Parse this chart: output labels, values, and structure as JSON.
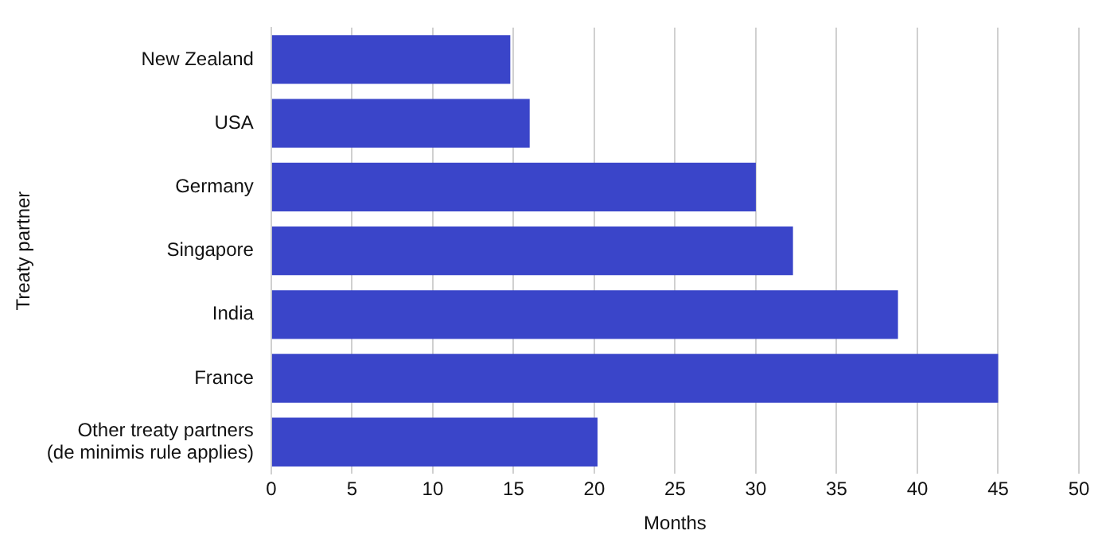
{
  "chart_data": {
    "type": "bar",
    "orientation": "horizontal",
    "xlabel": "Months",
    "ylabel": "Treaty partner",
    "categories": [
      "New Zealand",
      "USA",
      "Germany",
      "Singapore",
      "India",
      "France",
      "Other treaty partners\n(de minimis rule applies)"
    ],
    "values": [
      14.8,
      16,
      30,
      32.3,
      38.8,
      45,
      20.2
    ],
    "color": "#3a45c9",
    "xlim": [
      0,
      50
    ],
    "xticks": [
      0,
      5,
      10,
      15,
      20,
      25,
      30,
      35,
      40,
      45,
      50
    ],
    "grid": "x",
    "legend": false
  }
}
